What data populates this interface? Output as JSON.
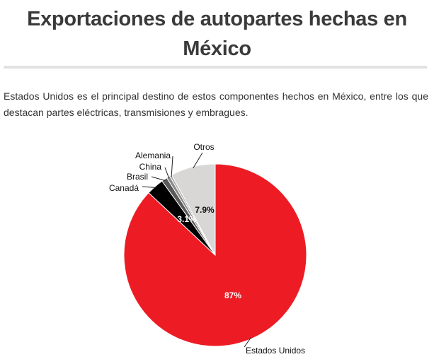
{
  "title": "Exportaciones de autopartes hechas en México",
  "subtitle": "Estados Unidos es el principal destino de estos componentes hechos en México, entre los que destacan partes eléctricas, transmisiones y embragues.",
  "chart_data": {
    "type": "pie",
    "slices": [
      {
        "label": "Estados Unidos",
        "value": 87,
        "color": "#ed1c24",
        "data_label": "87%",
        "label_color": "#ffffff"
      },
      {
        "label": "Canadá",
        "value": 3.1,
        "color": "#000000",
        "data_label": "3.1%",
        "label_color": "#ffffff"
      },
      {
        "label": "Brasil",
        "value": 1.0,
        "color": "#5a5a5a",
        "data_label": "",
        "label_color": "#ffffff"
      },
      {
        "label": "China",
        "value": 0.6,
        "color": "#8a8a8a",
        "data_label": "",
        "label_color": "#ffffff"
      },
      {
        "label": "Alemania",
        "value": 0.4,
        "color": "#b0b0b0",
        "data_label": "",
        "label_color": "#ffffff"
      },
      {
        "label": "Otros",
        "value": 7.9,
        "color": "#d9d6d6",
        "data_label": "7.9%",
        "label_color": "#111111"
      }
    ]
  }
}
